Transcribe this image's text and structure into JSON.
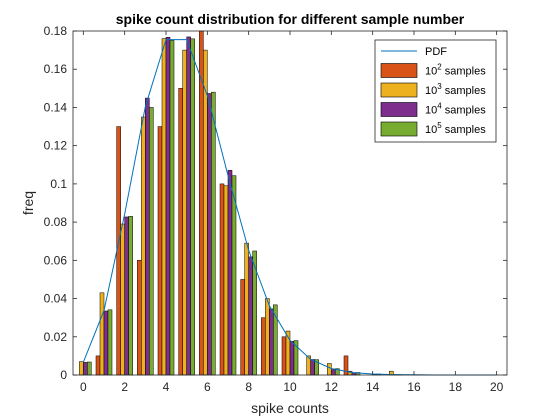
{
  "chart_data": {
    "type": "bar",
    "title": "spike count distribution for different sample number",
    "xlabel": "spike counts",
    "ylabel": "freq",
    "xlim": [
      -0.5,
      20.5
    ],
    "ylim": [
      0,
      0.18
    ],
    "xticks": [
      "0",
      "2",
      "4",
      "6",
      "8",
      "10",
      "12",
      "14",
      "16",
      "18",
      "20"
    ],
    "xtick_values": [
      0,
      2,
      4,
      6,
      8,
      10,
      12,
      14,
      16,
      18,
      20
    ],
    "yticks": [
      "0",
      "0.02",
      "0.04",
      "0.06",
      "0.08",
      "0.1",
      "0.12",
      "0.14",
      "0.16",
      "0.18"
    ],
    "ytick_values": [
      0,
      0.02,
      0.04,
      0.06,
      0.08,
      0.1,
      0.12,
      0.14,
      0.16,
      0.18
    ],
    "grid": false,
    "legend_position": "top-right",
    "categories": [
      0,
      1,
      2,
      3,
      4,
      5,
      6,
      7,
      8,
      9,
      10,
      11,
      12,
      13,
      14,
      15,
      16,
      17,
      18,
      19,
      20
    ],
    "pdf": {
      "name": "PDF",
      "color": "#0072BD",
      "values": [
        0.0067,
        0.0337,
        0.0842,
        0.1404,
        0.1755,
        0.1755,
        0.1462,
        0.1044,
        0.0653,
        0.0363,
        0.0181,
        0.0082,
        0.0034,
        0.0013,
        0.0005,
        0.0002,
        0.0001,
        0.0,
        0.0,
        0.0,
        0.0
      ]
    },
    "series": [
      {
        "name_base": "10",
        "name_exp": "2",
        "name_suffix": " samples",
        "color": "#D95319",
        "values": [
          0.0,
          0.01,
          0.13,
          0.06,
          0.13,
          0.15,
          0.18,
          0.1,
          0.05,
          0.03,
          0.02,
          0.0,
          0.0,
          0.01,
          0.0,
          0.0,
          0.0,
          0.0,
          0.0,
          0.0,
          0.0
        ]
      },
      {
        "name_base": "10",
        "name_exp": "3",
        "name_suffix": " samples",
        "color": "#EDB120",
        "values": [
          0.007,
          0.043,
          0.079,
          0.135,
          0.176,
          0.17,
          0.17,
          0.099,
          0.069,
          0.04,
          0.023,
          0.01,
          0.006,
          0.002,
          0.0,
          0.002,
          0.0,
          0.0,
          0.0,
          0.0,
          0.0
        ]
      },
      {
        "name_base": "10",
        "name_exp": "4",
        "name_suffix": " samples",
        "color": "#7E2F8E",
        "values": [
          0.0066,
          0.0335,
          0.0827,
          0.1449,
          0.1767,
          0.1769,
          0.1473,
          0.1071,
          0.0618,
          0.0346,
          0.0176,
          0.0081,
          0.0027,
          0.0012,
          0.0004,
          0.0002,
          0.0001,
          0.0,
          0.0,
          0.0,
          0.0
        ]
      },
      {
        "name_base": "10",
        "name_exp": "5",
        "name_suffix": " samples",
        "color": "#77AC30",
        "values": [
          0.0068,
          0.0341,
          0.083,
          0.14,
          0.1751,
          0.1759,
          0.148,
          0.1043,
          0.0649,
          0.0367,
          0.018,
          0.008,
          0.0033,
          0.0013,
          0.0005,
          0.0002,
          0.0001,
          0.0,
          0.0,
          0.0,
          0.0
        ]
      }
    ]
  }
}
